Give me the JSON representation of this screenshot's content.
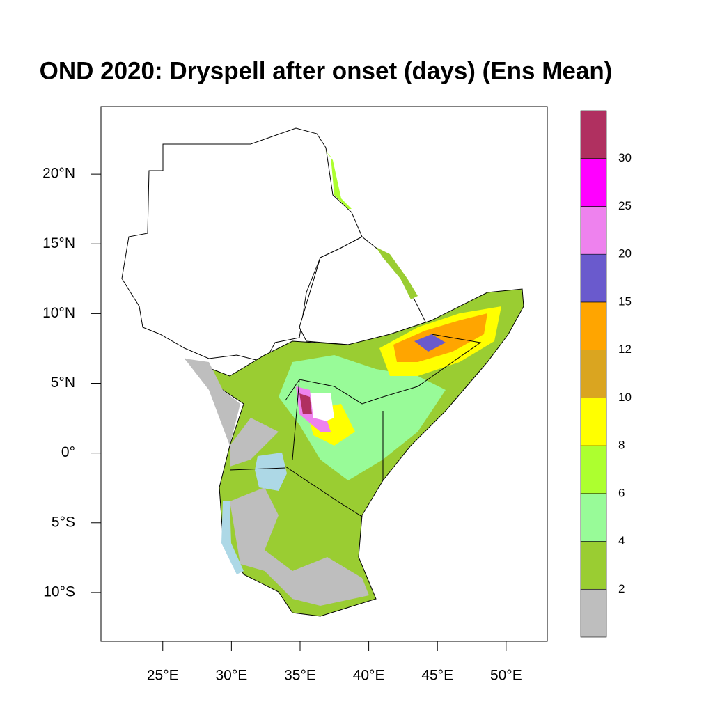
{
  "chart_data": {
    "type": "map",
    "title": "OND 2020: Dryspell after onset (days)  (Ens Mean)",
    "xlim": [
      20.5,
      53.0
    ],
    "ylim": [
      -13.5,
      24.85
    ],
    "xticks": [
      {
        "value": 25,
        "label": "25°E"
      },
      {
        "value": 30,
        "label": "30°E"
      },
      {
        "value": 35,
        "label": "35°E"
      },
      {
        "value": 40,
        "label": "40°E"
      },
      {
        "value": 45,
        "label": "45°E"
      },
      {
        "value": 50,
        "label": "50°E"
      }
    ],
    "yticks": [
      {
        "value": 20,
        "label": "20°N"
      },
      {
        "value": 15,
        "label": "15°N"
      },
      {
        "value": 10,
        "label": "10°N"
      },
      {
        "value": 5,
        "label": "5°N"
      },
      {
        "value": 0,
        "label": "0°"
      },
      {
        "value": -5,
        "label": "5°S"
      },
      {
        "value": -10,
        "label": "10°S"
      }
    ],
    "colorbar": {
      "levels": [
        2,
        4,
        6,
        8,
        10,
        12,
        15,
        20,
        25,
        30
      ],
      "colors": [
        "#bebebe",
        "#9acd32",
        "#98fb98",
        "#adff2f",
        "#ffff00",
        "#daa520",
        "#ffa500",
        "#6a5acd",
        "#ee82ee",
        "#ff00ff",
        "#b03060"
      ]
    }
  }
}
